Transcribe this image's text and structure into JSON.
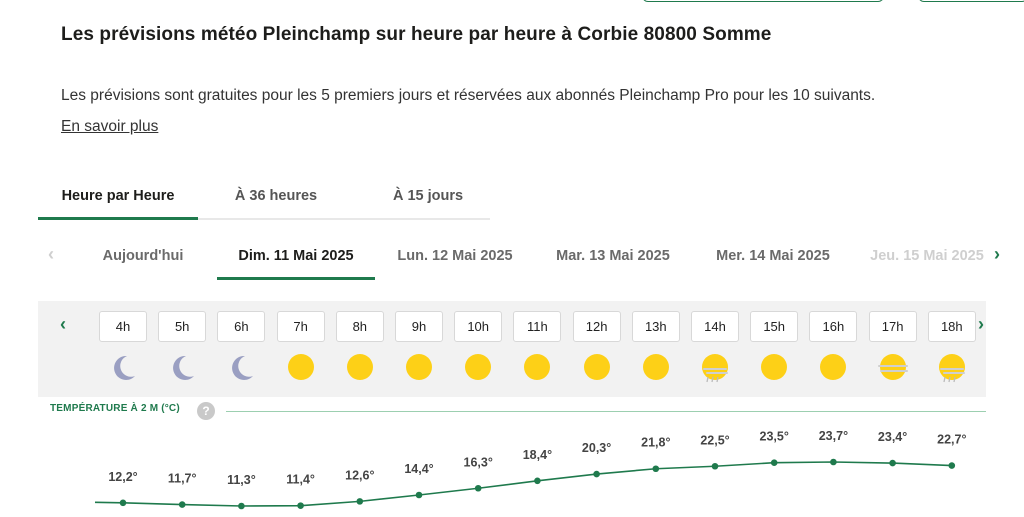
{
  "header": {
    "title": "Les prévisions météo Pleinchamp sur heure par heure à Corbie 80800 Somme",
    "intro": "Les prévisions sont gratuites pour les 5 premiers jours et réservées aux abonnés Pleinchamp Pro pour les 10 suivants.",
    "more_link": "En savoir plus"
  },
  "mode_tabs": [
    {
      "label": "Heure par Heure",
      "active": true
    },
    {
      "label": "À 36 heures",
      "active": false
    },
    {
      "label": "À 15 jours",
      "active": false
    }
  ],
  "day_tabs": [
    {
      "label": "Aujourd'hui",
      "state": "normal"
    },
    {
      "label": "Dim. 11 Mai 2025",
      "state": "active"
    },
    {
      "label": "Lun. 12 Mai 2025",
      "state": "normal"
    },
    {
      "label": "Mar. 13 Mai 2025",
      "state": "normal"
    },
    {
      "label": "Mer. 14 Mai 2025",
      "state": "normal"
    },
    {
      "label": "Jeu. 15 Mai 2025",
      "state": "faded"
    }
  ],
  "hours": [
    {
      "label": "4h",
      "icon": "moon-icon",
      "temp": "12,2°",
      "value": 12.2
    },
    {
      "label": "5h",
      "icon": "moon-icon",
      "temp": "11,7°",
      "value": 11.7
    },
    {
      "label": "6h",
      "icon": "moon-icon",
      "temp": "11,3°",
      "value": 11.3
    },
    {
      "label": "7h",
      "icon": "sun-icon",
      "temp": "11,4°",
      "value": 11.4
    },
    {
      "label": "8h",
      "icon": "sun-icon",
      "temp": "12,6°",
      "value": 12.6
    },
    {
      "label": "9h",
      "icon": "sun-icon",
      "temp": "14,4°",
      "value": 14.4
    },
    {
      "label": "10h",
      "icon": "sun-icon",
      "temp": "16,3°",
      "value": 16.3
    },
    {
      "label": "11h",
      "icon": "sun-icon",
      "temp": "18,4°",
      "value": 18.4
    },
    {
      "label": "12h",
      "icon": "sun-icon",
      "temp": "20,3°",
      "value": 20.3
    },
    {
      "label": "13h",
      "icon": "sun-icon",
      "temp": "21,8°",
      "value": 21.8
    },
    {
      "label": "14h",
      "icon": "sun-shower-icon",
      "temp": "22,5°",
      "value": 22.5
    },
    {
      "label": "15h",
      "icon": "sun-icon",
      "temp": "23,5°",
      "value": 23.5
    },
    {
      "label": "16h",
      "icon": "sun-icon",
      "temp": "23,7°",
      "value": 23.7
    },
    {
      "label": "17h",
      "icon": "sun-haze-icon",
      "temp": "23,4°",
      "value": 23.4
    },
    {
      "label": "18h",
      "icon": "sun-shower-icon",
      "temp": "22,7°",
      "value": 22.7
    }
  ],
  "temperature": {
    "header": "TEMPÉRATURE À 2 M (°C)",
    "help": "?"
  },
  "colors": {
    "brand_green": "#1f7a4d",
    "sun": "#fdd017",
    "moon": "#9a9fc2",
    "line": "#1f7a4d"
  }
}
